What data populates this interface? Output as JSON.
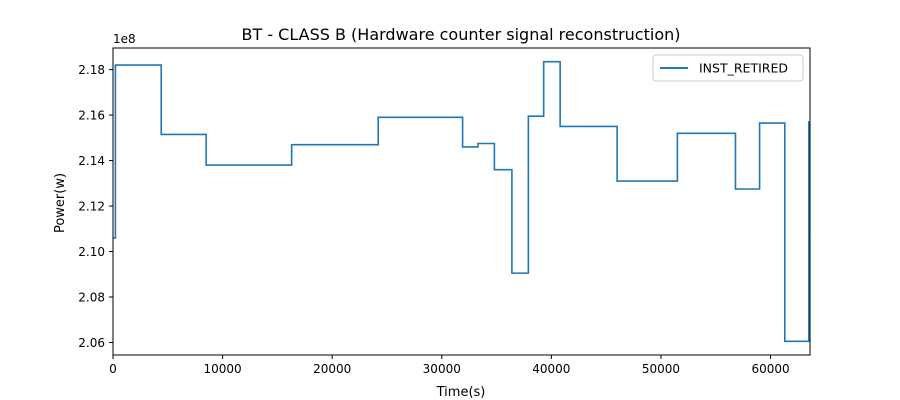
{
  "chart_data": {
    "type": "line",
    "title": "BT - CLASS B (Hardware counter signal reconstruction)",
    "xlabel": "Time(s)",
    "ylabel": "Power(w)",
    "y_offset_label": "1e8",
    "y_scale": 100000000.0,
    "xlim": [
      0,
      63600
    ],
    "ylim": [
      2.0545,
      2.1895
    ],
    "x_ticks": [
      0,
      10000,
      20000,
      30000,
      40000,
      50000,
      60000
    ],
    "x_tick_labels": [
      "0",
      "10000",
      "20000",
      "30000",
      "40000",
      "50000",
      "60000"
    ],
    "y_ticks": [
      2.06,
      2.08,
      2.1,
      2.12,
      2.14,
      2.16,
      2.18
    ],
    "y_tick_labels": [
      "2.06",
      "2.08",
      "2.10",
      "2.12",
      "2.14",
      "2.16",
      "2.18"
    ],
    "grid": false,
    "legend_position": "top-right",
    "step": "post",
    "series": [
      {
        "name": "INST_RETIRED",
        "color": "#1f77b4",
        "x": [
          0,
          220,
          4400,
          8500,
          16300,
          24200,
          31900,
          33300,
          34800,
          36400,
          37900,
          39300,
          40800,
          46000,
          51500,
          56800,
          59000,
          61300,
          63500,
          63600
        ],
        "y": [
          2.106,
          2.182,
          2.1515,
          2.138,
          2.147,
          2.159,
          2.146,
          2.1475,
          2.136,
          2.0905,
          2.1595,
          2.1835,
          2.155,
          2.131,
          2.152,
          2.1275,
          2.1565,
          2.0605,
          2.157,
          2.157
        ]
      }
    ]
  }
}
